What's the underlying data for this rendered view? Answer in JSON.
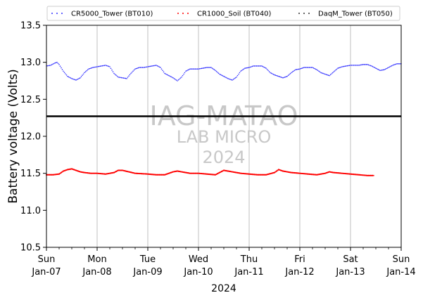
{
  "chart_data": {
    "type": "scatter",
    "xlabel": "2024",
    "ylabel": "Battery voltage (Volts)",
    "x_range": [
      "2024-01-07",
      "2024-01-14"
    ],
    "ylim": [
      10.5,
      13.5
    ],
    "y_ticks": [
      "10.5",
      "11.0",
      "11.5",
      "12.0",
      "12.5",
      "13.0",
      "13.5"
    ],
    "x_ticks": [
      {
        "day": "Sun",
        "date": "Jan-07"
      },
      {
        "day": "Mon",
        "date": "Jan-08"
      },
      {
        "day": "Tue",
        "date": "Jan-09"
      },
      {
        "day": "Wed",
        "date": "Jan-10"
      },
      {
        "day": "Thu",
        "date": "Jan-11"
      },
      {
        "day": "Fri",
        "date": "Jan-12"
      },
      {
        "day": "Sat",
        "date": "Jan-13"
      },
      {
        "day": "Sun",
        "date": "Jan-14"
      }
    ],
    "grid": "vertical lines at each day",
    "legend_position": "top",
    "reference_line": {
      "y": 12.27,
      "color": "#000000"
    },
    "watermark": [
      "IAG-MATAO",
      "LAB MICRO",
      "2024"
    ],
    "series": [
      {
        "name": "CR5000_Tower (BT010)",
        "color": "#3333ff",
        "points": [
          [
            "2024-01-07 00:00",
            12.95
          ],
          [
            "2024-01-07 02:00",
            12.96
          ],
          [
            "2024-01-07 04:00",
            12.99
          ],
          [
            "2024-01-07 05:00",
            13.0
          ],
          [
            "2024-01-07 06:00",
            12.97
          ],
          [
            "2024-01-07 08:00",
            12.88
          ],
          [
            "2024-01-07 10:00",
            12.81
          ],
          [
            "2024-01-07 12:00",
            12.78
          ],
          [
            "2024-01-07 14:00",
            12.76
          ],
          [
            "2024-01-07 16:00",
            12.79
          ],
          [
            "2024-01-07 18:00",
            12.86
          ],
          [
            "2024-01-07 20:00",
            12.91
          ],
          [
            "2024-01-07 22:00",
            12.93
          ],
          [
            "2024-01-08 00:00",
            12.94
          ],
          [
            "2024-01-08 02:00",
            12.95
          ],
          [
            "2024-01-08 04:00",
            12.96
          ],
          [
            "2024-01-08 06:00",
            12.94
          ],
          [
            "2024-01-08 08:00",
            12.85
          ],
          [
            "2024-01-08 10:00",
            12.8
          ],
          [
            "2024-01-08 12:00",
            12.79
          ],
          [
            "2024-01-08 14:00",
            12.78
          ],
          [
            "2024-01-08 16:00",
            12.85
          ],
          [
            "2024-01-08 18:00",
            12.91
          ],
          [
            "2024-01-08 20:00",
            12.93
          ],
          [
            "2024-01-08 22:00",
            12.93
          ],
          [
            "2024-01-09 00:00",
            12.94
          ],
          [
            "2024-01-09 02:00",
            12.95
          ],
          [
            "2024-01-09 04:00",
            12.96
          ],
          [
            "2024-01-09 06:00",
            12.93
          ],
          [
            "2024-01-09 08:00",
            12.85
          ],
          [
            "2024-01-09 10:00",
            12.82
          ],
          [
            "2024-01-09 12:00",
            12.79
          ],
          [
            "2024-01-09 14:00",
            12.75
          ],
          [
            "2024-01-09 16:00",
            12.8
          ],
          [
            "2024-01-09 18:00",
            12.88
          ],
          [
            "2024-01-09 20:00",
            12.91
          ],
          [
            "2024-01-09 22:00",
            12.91
          ],
          [
            "2024-01-10 00:00",
            12.91
          ],
          [
            "2024-01-10 02:00",
            12.92
          ],
          [
            "2024-01-10 04:00",
            12.93
          ],
          [
            "2024-01-10 06:00",
            12.93
          ],
          [
            "2024-01-10 08:00",
            12.89
          ],
          [
            "2024-01-10 10:00",
            12.84
          ],
          [
            "2024-01-10 12:00",
            12.81
          ],
          [
            "2024-01-10 14:00",
            12.78
          ],
          [
            "2024-01-10 16:00",
            12.76
          ],
          [
            "2024-01-10 18:00",
            12.8
          ],
          [
            "2024-01-10 20:00",
            12.88
          ],
          [
            "2024-01-10 22:00",
            12.92
          ],
          [
            "2024-01-11 00:00",
            12.93
          ],
          [
            "2024-01-11 02:00",
            12.95
          ],
          [
            "2024-01-11 04:00",
            12.95
          ],
          [
            "2024-01-11 06:00",
            12.95
          ],
          [
            "2024-01-11 08:00",
            12.92
          ],
          [
            "2024-01-11 10:00",
            12.86
          ],
          [
            "2024-01-11 12:00",
            12.83
          ],
          [
            "2024-01-11 14:00",
            12.81
          ],
          [
            "2024-01-11 16:00",
            12.79
          ],
          [
            "2024-01-11 18:00",
            12.81
          ],
          [
            "2024-01-11 20:00",
            12.86
          ],
          [
            "2024-01-11 22:00",
            12.9
          ],
          [
            "2024-01-12 00:00",
            12.91
          ],
          [
            "2024-01-12 02:00",
            12.93
          ],
          [
            "2024-01-12 04:00",
            12.93
          ],
          [
            "2024-01-12 06:00",
            12.93
          ],
          [
            "2024-01-12 08:00",
            12.9
          ],
          [
            "2024-01-12 10:00",
            12.86
          ],
          [
            "2024-01-12 12:00",
            12.84
          ],
          [
            "2024-01-12 14:00",
            12.82
          ],
          [
            "2024-01-12 16:00",
            12.87
          ],
          [
            "2024-01-12 18:00",
            12.92
          ],
          [
            "2024-01-12 20:00",
            12.94
          ],
          [
            "2024-01-12 22:00",
            12.95
          ],
          [
            "2024-01-13 00:00",
            12.96
          ],
          [
            "2024-01-13 02:00",
            12.96
          ],
          [
            "2024-01-13 04:00",
            12.96
          ],
          [
            "2024-01-13 06:00",
            12.97
          ],
          [
            "2024-01-13 08:00",
            12.97
          ],
          [
            "2024-01-13 10:00",
            12.95
          ],
          [
            "2024-01-13 12:00",
            12.92
          ],
          [
            "2024-01-13 14:00",
            12.89
          ],
          [
            "2024-01-13 16:00",
            12.9
          ],
          [
            "2024-01-13 18:00",
            12.93
          ],
          [
            "2024-01-13 20:00",
            12.96
          ],
          [
            "2024-01-13 22:00",
            12.98
          ],
          [
            "2024-01-14 00:00",
            12.98
          ]
        ]
      },
      {
        "name": "CR1000_Soil (BT040)",
        "color": "#ff0000",
        "points": [
          [
            "2024-01-07 00:00",
            11.48
          ],
          [
            "2024-01-07 03:00",
            11.48
          ],
          [
            "2024-01-07 06:00",
            11.49
          ],
          [
            "2024-01-07 08:00",
            11.53
          ],
          [
            "2024-01-07 10:00",
            11.55
          ],
          [
            "2024-01-07 12:00",
            11.56
          ],
          [
            "2024-01-07 14:00",
            11.54
          ],
          [
            "2024-01-07 16:00",
            11.52
          ],
          [
            "2024-01-07 18:00",
            11.51
          ],
          [
            "2024-01-07 21:00",
            11.5
          ],
          [
            "2024-01-08 00:00",
            11.5
          ],
          [
            "2024-01-08 04:00",
            11.49
          ],
          [
            "2024-01-08 08:00",
            11.51
          ],
          [
            "2024-01-08 10:00",
            11.54
          ],
          [
            "2024-01-08 12:00",
            11.54
          ],
          [
            "2024-01-08 15:00",
            11.52
          ],
          [
            "2024-01-08 18:00",
            11.5
          ],
          [
            "2024-01-09 00:00",
            11.49
          ],
          [
            "2024-01-09 04:00",
            11.48
          ],
          [
            "2024-01-09 08:00",
            11.48
          ],
          [
            "2024-01-09 12:00",
            11.52
          ],
          [
            "2024-01-09 14:00",
            11.53
          ],
          [
            "2024-01-09 16:00",
            11.52
          ],
          [
            "2024-01-09 20:00",
            11.5
          ],
          [
            "2024-01-10 00:00",
            11.5
          ],
          [
            "2024-01-10 04:00",
            11.49
          ],
          [
            "2024-01-10 08:00",
            11.48
          ],
          [
            "2024-01-10 10:00",
            11.51
          ],
          [
            "2024-01-10 12:00",
            11.54
          ],
          [
            "2024-01-10 14:00",
            11.53
          ],
          [
            "2024-01-10 16:00",
            11.52
          ],
          [
            "2024-01-10 20:00",
            11.5
          ],
          [
            "2024-01-11 00:00",
            11.49
          ],
          [
            "2024-01-11 04:00",
            11.48
          ],
          [
            "2024-01-11 08:00",
            11.48
          ],
          [
            "2024-01-11 12:00",
            11.51
          ],
          [
            "2024-01-11 14:00",
            11.55
          ],
          [
            "2024-01-11 16:00",
            11.53
          ],
          [
            "2024-01-11 20:00",
            11.51
          ],
          [
            "2024-01-12 00:00",
            11.5
          ],
          [
            "2024-01-12 04:00",
            11.49
          ],
          [
            "2024-01-12 08:00",
            11.48
          ],
          [
            "2024-01-12 12:00",
            11.5
          ],
          [
            "2024-01-12 14:00",
            11.52
          ],
          [
            "2024-01-12 16:00",
            11.51
          ],
          [
            "2024-01-12 20:00",
            11.5
          ],
          [
            "2024-01-13 00:00",
            11.49
          ],
          [
            "2024-01-13 04:00",
            11.48
          ],
          [
            "2024-01-13 08:00",
            11.47
          ],
          [
            "2024-01-13 11:00",
            11.47
          ]
        ]
      },
      {
        "name": "DaqM_Tower (BT050)",
        "color": "#333333",
        "points": []
      }
    ]
  }
}
